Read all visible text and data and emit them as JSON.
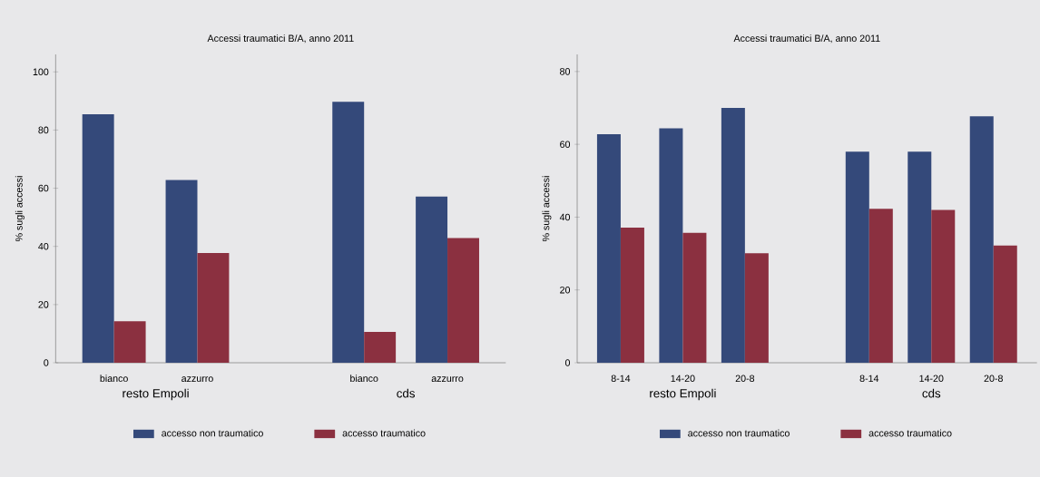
{
  "chart_data": [
    {
      "type": "bar",
      "title": "Accessi traumatici B/A, anno 2011",
      "ylabel": "% sugli accessi",
      "categories": [
        "bianco",
        "azzurro",
        null,
        "bianco",
        "azzurro"
      ],
      "series": [
        {
          "name": "accesso non traumatico",
          "color": "#34497a",
          "values": [
            85.4,
            62.8,
            null,
            89.7,
            57.1
          ]
        },
        {
          "name": "accesso traumatico",
          "color": "#8b3040",
          "values": [
            14.3,
            37.7,
            null,
            10.6,
            42.9
          ]
        }
      ],
      "ylim": [
        0,
        106
      ],
      "yticks": [
        0,
        20,
        40,
        60,
        80,
        100
      ],
      "legend": "bottom",
      "annotations": [
        "resto Empoli",
        "cds"
      ]
    },
    {
      "type": "bar",
      "title": "Accessi traumatici B/A, anno 2011",
      "ylabel": "% sugli accessi",
      "categories": [
        "8-14",
        "14-20",
        "20-8",
        null,
        "8-14",
        "14-20",
        "20-8"
      ],
      "series": [
        {
          "name": "accesso non traumatico",
          "color": "#34497a",
          "values": [
            62.8,
            64.4,
            70.0,
            null,
            58.0,
            58.0,
            67.7
          ]
        },
        {
          "name": "accesso traumatico",
          "color": "#8b3040",
          "values": [
            37.1,
            35.7,
            30.1,
            null,
            42.3,
            42.0,
            32.2
          ]
        }
      ],
      "ylim": [
        0,
        84.7
      ],
      "yticks": [
        0,
        20,
        40,
        60,
        80
      ],
      "legend": "bottom",
      "annotations": [
        "resto Empoli",
        "cds"
      ]
    }
  ]
}
